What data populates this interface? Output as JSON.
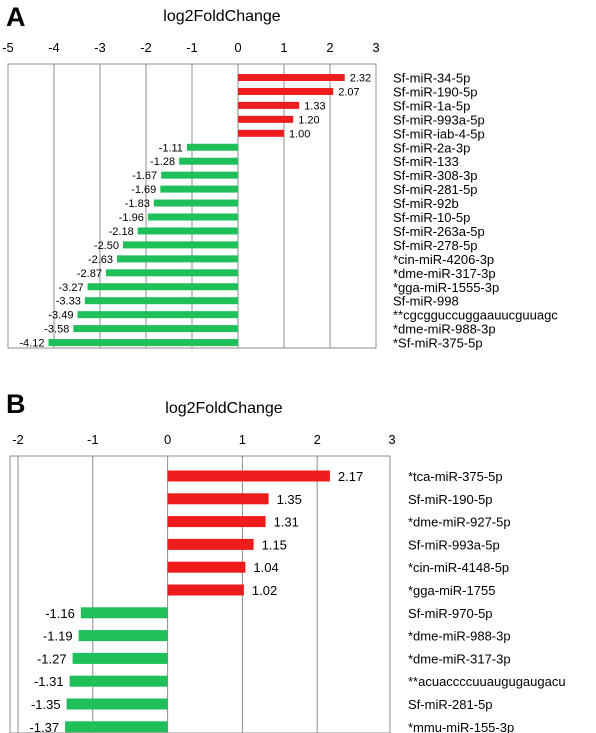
{
  "chart_data": [
    {
      "type": "bar",
      "orientation": "horizontal",
      "panel_label": "A",
      "title": "log2FoldChange",
      "xlim": [
        -5,
        3
      ],
      "ticks": [
        "-5",
        "-4",
        "-3",
        "-2",
        "-1",
        "0",
        "1",
        "2",
        "3"
      ],
      "grid": true,
      "colors": {
        "positive": "#ee1c1c",
        "negative": "#1fbf5a"
      },
      "categories": [
        "Sf-miR-34-5p",
        "Sf-miR-190-5p",
        "Sf-miR-1a-5p",
        "Sf-miR-993a-5p",
        "Sf-miR-iab-4-5p",
        "Sf-miR-2a-3p",
        "Sf-miR-133",
        "Sf-miR-308-3p",
        "Sf-miR-281-5p",
        "Sf-miR-92b",
        "Sf-miR-10-5p",
        "Sf-miR-263a-5p",
        "Sf-miR-278-5p",
        "*cin-miR-4206-3p",
        "*dme-miR-317-3p",
        "*gga-miR-1555-3p",
        "Sf-miR-998",
        "**cgcgguccuggaauucguuagc",
        "*dme-miR-988-3p",
        "*Sf-miR-375-5p"
      ],
      "values": [
        2.32,
        2.07,
        1.33,
        1.2,
        1.0,
        -1.11,
        -1.28,
        -1.67,
        -1.69,
        -1.83,
        -1.96,
        -2.18,
        -2.5,
        -2.63,
        -2.87,
        -3.27,
        -3.33,
        -3.49,
        -3.58,
        -4.12
      ],
      "value_labels": [
        "2.32",
        "2.07",
        "1.33",
        "1.20",
        "1.00",
        "-1.11",
        "-1.28",
        "-1.67",
        "-1.69",
        "-1.83",
        "-1.96",
        "-2.18",
        "-2.50",
        "-2.63",
        "-2.87",
        "-3.27",
        "-3.33",
        "-3.49",
        "-3.58",
        "-4.12"
      ]
    },
    {
      "type": "bar",
      "orientation": "horizontal",
      "panel_label": "B",
      "title": "log2FoldChange",
      "xlim": [
        -2,
        3
      ],
      "ticks": [
        "-2",
        "-1",
        "0",
        "1",
        "2",
        "3"
      ],
      "grid": true,
      "colors": {
        "positive": "#ee1c1c",
        "negative": "#1fbf5a"
      },
      "categories": [
        "*tca-miR-375-5p",
        "Sf-miR-190-5p",
        "*dme-miR-927-5p",
        "Sf-miR-993a-5p",
        "*cin-miR-4148-5p",
        "*gga-miR-1755",
        "Sf-miR-970-5p",
        "*dme-miR-988-3p",
        "*dme-miR-317-3p",
        "**acuaccccuuaugugaugacu",
        "Sf-miR-281-5p",
        "*mmu-miR-155-3p"
      ],
      "values": [
        2.17,
        1.35,
        1.31,
        1.15,
        1.04,
        1.02,
        -1.16,
        -1.19,
        -1.27,
        -1.31,
        -1.35,
        -1.37
      ],
      "value_labels": [
        "2.17",
        "1.35",
        "1.31",
        "1.15",
        "1.04",
        "1.02",
        "-1.16",
        "-1.19",
        "-1.27",
        "-1.31",
        "-1.35",
        "-1.37"
      ]
    }
  ]
}
